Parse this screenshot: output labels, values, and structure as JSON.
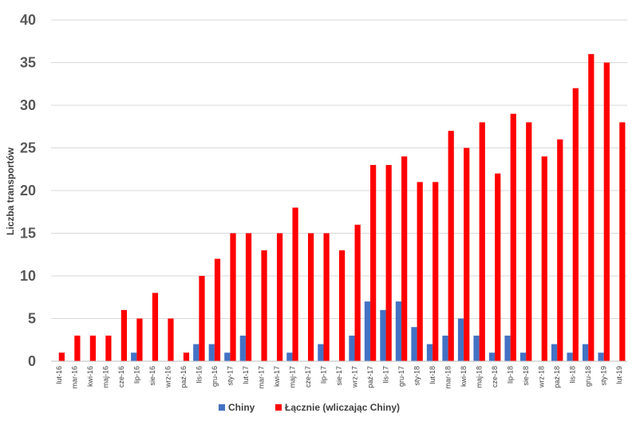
{
  "chart_data": {
    "type": "bar",
    "title": "",
    "xlabel": "",
    "ylabel": "Liczba transportów",
    "ylim": [
      0,
      40
    ],
    "yticks": [
      0,
      5,
      10,
      15,
      20,
      25,
      30,
      35,
      40
    ],
    "grid": true,
    "legend_position": "bottom",
    "categories": [
      "lut-16",
      "mar-16",
      "kwi-16",
      "maj-16",
      "cze-16",
      "lip-16",
      "sie-16",
      "wrz-16",
      "paź-16",
      "lis-16",
      "gru-16",
      "sty-17",
      "lut-17",
      "mar-17",
      "kwi-17",
      "maj-17",
      "cze-17",
      "lip-17",
      "sie-17",
      "wrz-17",
      "paź-17",
      "lis-17",
      "gru-17",
      "sty-18",
      "lut-18",
      "mar-18",
      "kwi-18",
      "maj-18",
      "cze-18",
      "lip-18",
      "sie-18",
      "wrz-18",
      "paź-18",
      "lis-18",
      "gru-18",
      "sty-19",
      "lut-19"
    ],
    "series": [
      {
        "name": "Chiny",
        "color": "#4472C4",
        "values": [
          0,
          0,
          0,
          0,
          0,
          1,
          0,
          0,
          0,
          2,
          2,
          1,
          3,
          0,
          0,
          1,
          0,
          2,
          0,
          3,
          7,
          6,
          7,
          4,
          2,
          3,
          5,
          3,
          1,
          3,
          1,
          0,
          2,
          1,
          2,
          1,
          0
        ]
      },
      {
        "name": "Łącznie (wliczając Chiny)",
        "color": "#FF0000",
        "values": [
          1,
          3,
          3,
          3,
          6,
          5,
          8,
          5,
          1,
          10,
          12,
          15,
          15,
          13,
          15,
          18,
          15,
          15,
          13,
          16,
          23,
          23,
          24,
          21,
          21,
          27,
          25,
          28,
          22,
          29,
          28,
          24,
          26,
          32,
          36,
          35,
          28
        ]
      }
    ]
  }
}
